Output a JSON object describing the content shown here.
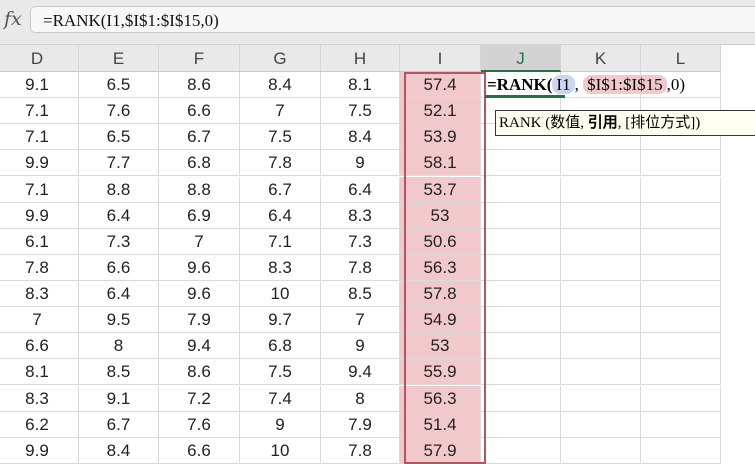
{
  "formula_bar": {
    "icon": "fx",
    "value": "=RANK(I1,$I$1:$I$15,0)"
  },
  "columns": [
    "D",
    "E",
    "F",
    "G",
    "H",
    "I",
    "J",
    "K",
    "L"
  ],
  "selected_column": "J",
  "rows": [
    [
      "9.1",
      "6.5",
      "8.6",
      "8.4",
      "8.1",
      "57.4"
    ],
    [
      "7.1",
      "7.6",
      "6.6",
      "7",
      "7.5",
      "52.1"
    ],
    [
      "7.1",
      "6.5",
      "6.7",
      "7.5",
      "8.4",
      "53.9"
    ],
    [
      "9.9",
      "7.7",
      "6.8",
      "7.8",
      "9",
      "58.1"
    ],
    [
      "7.1",
      "8.8",
      "8.8",
      "6.7",
      "6.4",
      "53.7"
    ],
    [
      "9.9",
      "6.4",
      "6.9",
      "6.4",
      "8.3",
      "53"
    ],
    [
      "6.1",
      "7.3",
      "7",
      "7.1",
      "7.3",
      "50.6"
    ],
    [
      "7.8",
      "6.6",
      "9.6",
      "8.3",
      "7.8",
      "56.3"
    ],
    [
      "8.3",
      "6.4",
      "9.6",
      "10",
      "8.5",
      "57.8"
    ],
    [
      "7",
      "9.5",
      "7.9",
      "9.7",
      "7",
      "54.9"
    ],
    [
      "6.6",
      "8",
      "9.4",
      "6.8",
      "9",
      "53"
    ],
    [
      "8.1",
      "8.5",
      "8.6",
      "7.5",
      "9.4",
      "55.9"
    ],
    [
      "8.3",
      "9.1",
      "7.2",
      "7.4",
      "8",
      "56.3"
    ],
    [
      "6.2",
      "6.7",
      "7.6",
      "9",
      "7.9",
      "51.4"
    ],
    [
      "9.9",
      "8.4",
      "6.6",
      "10",
      "7.8",
      "57.9"
    ]
  ],
  "editing_cell": {
    "prefix": "=RANK(",
    "ref1": "I1",
    "sep1": ", ",
    "ref2": "$I$1:$I$15",
    "suffix": ",0)"
  },
  "tooltip": {
    "func": "RANK",
    "open": " (",
    "arg1": "数值, ",
    "arg2": "引用",
    "arg3": ", [排位方式])"
  },
  "colors": {
    "range_fill": "#f1c9cc",
    "range_border": "#b5565e",
    "accent": "#217346"
  }
}
